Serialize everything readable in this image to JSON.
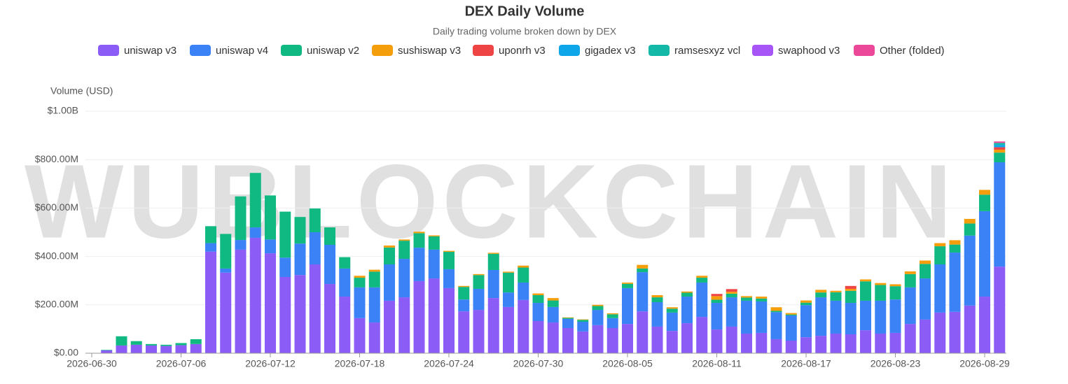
{
  "chart_data": {
    "type": "bar",
    "stacked": true,
    "title": "DEX Daily Volume",
    "subtitle": "Daily trading volume broken down by DEX",
    "y_axis_label": "Volume (USD)",
    "watermark": "WUBLOCKCHAIN",
    "categories": [
      "2026-06-30",
      null,
      null,
      null,
      null,
      null,
      "2026-07-06",
      null,
      null,
      null,
      null,
      null,
      "2026-07-12",
      null,
      null,
      null,
      null,
      null,
      "2026-07-18",
      null,
      null,
      null,
      null,
      null,
      "2026-07-24",
      null,
      null,
      null,
      null,
      null,
      "2026-07-30",
      null,
      null,
      null,
      null,
      null,
      "2026-08-05",
      null,
      null,
      null,
      null,
      null,
      "2026-08-11",
      null,
      null,
      null,
      null,
      null,
      "2026-08-17",
      null,
      null,
      null,
      null,
      null,
      "2026-08-23",
      null,
      null,
      null,
      null,
      null,
      "2026-08-29",
      null
    ],
    "ylim": [
      0,
      1000000000
    ],
    "yticks": [
      {
        "value": 0,
        "label": "$0.00"
      },
      {
        "value": 200000000,
        "label": "$200.00M"
      },
      {
        "value": 400000000,
        "label": "$400.00M"
      },
      {
        "value": 600000000,
        "label": "$600.00M"
      },
      {
        "value": 800000000,
        "label": "$800.00M"
      },
      {
        "value": 1000000000,
        "label": "$1.00B"
      }
    ],
    "grid": true,
    "legend": "top",
    "series": [
      {
        "name": "uniswap v3",
        "color": "#8b5cf6",
        "values": [
          0,
          12000000,
          32000000,
          35000000,
          32000000,
          30000000,
          33000000,
          38000000,
          420000000,
          333000000,
          428000000,
          477000000,
          413000000,
          315000000,
          323000000,
          367000000,
          286000000,
          234000000,
          145000000,
          127000000,
          217000000,
          231000000,
          298000000,
          309000000,
          269000000,
          173000000,
          179000000,
          228000000,
          191000000,
          220000000,
          133000000,
          127000000,
          104000000,
          90000000,
          116000000,
          104000000,
          121000000,
          173000000,
          110000000,
          92000000,
          124000000,
          150000000,
          98000000,
          110000000,
          81000000,
          84000000,
          58000000,
          52000000,
          66000000,
          72000000,
          81000000,
          78000000,
          95000000,
          81000000,
          84000000,
          121000000,
          139000000,
          168000000,
          171000000,
          197000000,
          234000000,
          358000000
        ]
      },
      {
        "name": "uniswap v4",
        "color": "#3b82f6",
        "values": [
          0,
          0,
          0,
          0,
          0,
          0,
          0,
          0,
          35000000,
          17000000,
          40000000,
          43000000,
          57000000,
          80000000,
          130000000,
          133000000,
          162000000,
          116000000,
          127000000,
          145000000,
          150000000,
          159000000,
          138000000,
          119000000,
          78000000,
          49000000,
          87000000,
          116000000,
          60000000,
          72000000,
          75000000,
          64000000,
          38000000,
          40000000,
          63000000,
          41000000,
          148000000,
          162000000,
          101000000,
          76000000,
          110000000,
          142000000,
          110000000,
          121000000,
          136000000,
          130000000,
          112000000,
          104000000,
          133000000,
          159000000,
          136000000,
          130000000,
          122000000,
          136000000,
          138000000,
          151000000,
          170000000,
          199000000,
          245000000,
          289000000,
          353000000,
          431000000
        ]
      },
      {
        "name": "uniswap v2",
        "color": "#10b981",
        "values": [
          0,
          2000000,
          38000000,
          15000000,
          6000000,
          5000000,
          9000000,
          20000000,
          70000000,
          143000000,
          180000000,
          225000000,
          182000000,
          190000000,
          110000000,
          98000000,
          72000000,
          47000000,
          40000000,
          65000000,
          70000000,
          75000000,
          60000000,
          55000000,
          72000000,
          52000000,
          57000000,
          67000000,
          82000000,
          62000000,
          32000000,
          27000000,
          4000000,
          8000000,
          16000000,
          16000000,
          18000000,
          15000000,
          20000000,
          16000000,
          16000000,
          20000000,
          13000000,
          15000000,
          13000000,
          12000000,
          5000000,
          4000000,
          10000000,
          20000000,
          35000000,
          50000000,
          80000000,
          65000000,
          55000000,
          55000000,
          60000000,
          75000000,
          33000000,
          50000000,
          68000000,
          40000000
        ]
      },
      {
        "name": "sushiswap v3",
        "color": "#f59e0b",
        "values": [
          0,
          0,
          0,
          0,
          0,
          0,
          0,
          0,
          0,
          0,
          0,
          0,
          0,
          0,
          0,
          0,
          0,
          0,
          8000000,
          8000000,
          8000000,
          5000000,
          6000000,
          4000000,
          4000000,
          4000000,
          4000000,
          4000000,
          4000000,
          8000000,
          7000000,
          10000000,
          2000000,
          2000000,
          5000000,
          4000000,
          5000000,
          15000000,
          9000000,
          6000000,
          5000000,
          8000000,
          15000000,
          8000000,
          6000000,
          8000000,
          15000000,
          6000000,
          9000000,
          11000000,
          6000000,
          8000000,
          8000000,
          8000000,
          8000000,
          11000000,
          14000000,
          13000000,
          18000000,
          19000000,
          20000000,
          12000000
        ]
      },
      {
        "name": "uponrh v3",
        "color": "#ef4444",
        "values": [
          0,
          0,
          0,
          0,
          0,
          0,
          0,
          0,
          0,
          0,
          0,
          0,
          0,
          0,
          0,
          0,
          0,
          0,
          0,
          0,
          0,
          0,
          0,
          0,
          0,
          0,
          0,
          0,
          0,
          0,
          0,
          0,
          0,
          0,
          0,
          0,
          0,
          0,
          0,
          0,
          0,
          0,
          9000000,
          11000000,
          0,
          0,
          0,
          0,
          0,
          0,
          0,
          12000000,
          0,
          0,
          0,
          0,
          0,
          0,
          0,
          0,
          0,
          10000000
        ]
      },
      {
        "name": "gigadex v3",
        "color": "#0ea5e9",
        "values": [
          0,
          0,
          0,
          0,
          0,
          0,
          0,
          0,
          0,
          0,
          0,
          0,
          0,
          0,
          0,
          0,
          0,
          0,
          0,
          0,
          0,
          0,
          0,
          0,
          0,
          0,
          0,
          0,
          0,
          0,
          0,
          0,
          0,
          0,
          0,
          0,
          0,
          0,
          0,
          0,
          0,
          0,
          0,
          0,
          0,
          0,
          0,
          0,
          0,
          0,
          0,
          0,
          0,
          0,
          0,
          0,
          0,
          0,
          0,
          0,
          0,
          10000000
        ]
      },
      {
        "name": "ramsesxyz vcl",
        "color": "#14b8a6",
        "values": [
          0,
          0,
          0,
          0,
          0,
          0,
          0,
          0,
          0,
          0,
          0,
          0,
          0,
          0,
          0,
          0,
          0,
          0,
          0,
          0,
          0,
          0,
          0,
          0,
          0,
          0,
          0,
          0,
          0,
          0,
          0,
          0,
          0,
          0,
          0,
          0,
          0,
          0,
          0,
          0,
          0,
          0,
          0,
          0,
          0,
          0,
          0,
          0,
          0,
          0,
          0,
          0,
          0,
          0,
          0,
          0,
          0,
          0,
          0,
          0,
          0,
          8000000
        ]
      },
      {
        "name": "swaphood v3",
        "color": "#a855f7",
        "values": [
          0,
          0,
          0,
          0,
          0,
          0,
          0,
          0,
          0,
          0,
          0,
          0,
          0,
          0,
          0,
          0,
          0,
          0,
          0,
          0,
          0,
          0,
          0,
          0,
          0,
          0,
          0,
          0,
          0,
          0,
          0,
          0,
          0,
          0,
          0,
          0,
          0,
          0,
          0,
          0,
          0,
          0,
          0,
          0,
          0,
          0,
          0,
          0,
          0,
          0,
          0,
          0,
          0,
          0,
          0,
          0,
          0,
          0,
          0,
          0,
          0,
          0
        ]
      },
      {
        "name": "Other (folded)",
        "color": "#ec4899",
        "values": [
          0,
          0,
          0,
          0,
          0,
          0,
          0,
          0,
          0,
          0,
          0,
          0,
          0,
          0,
          0,
          0,
          0,
          0,
          0,
          0,
          0,
          0,
          0,
          0,
          0,
          0,
          0,
          0,
          0,
          0,
          0,
          0,
          0,
          0,
          0,
          0,
          0,
          0,
          0,
          0,
          0,
          0,
          0,
          0,
          0,
          0,
          0,
          0,
          0,
          0,
          0,
          0,
          0,
          0,
          0,
          0,
          0,
          0,
          0,
          0,
          0,
          6000000
        ]
      }
    ]
  }
}
